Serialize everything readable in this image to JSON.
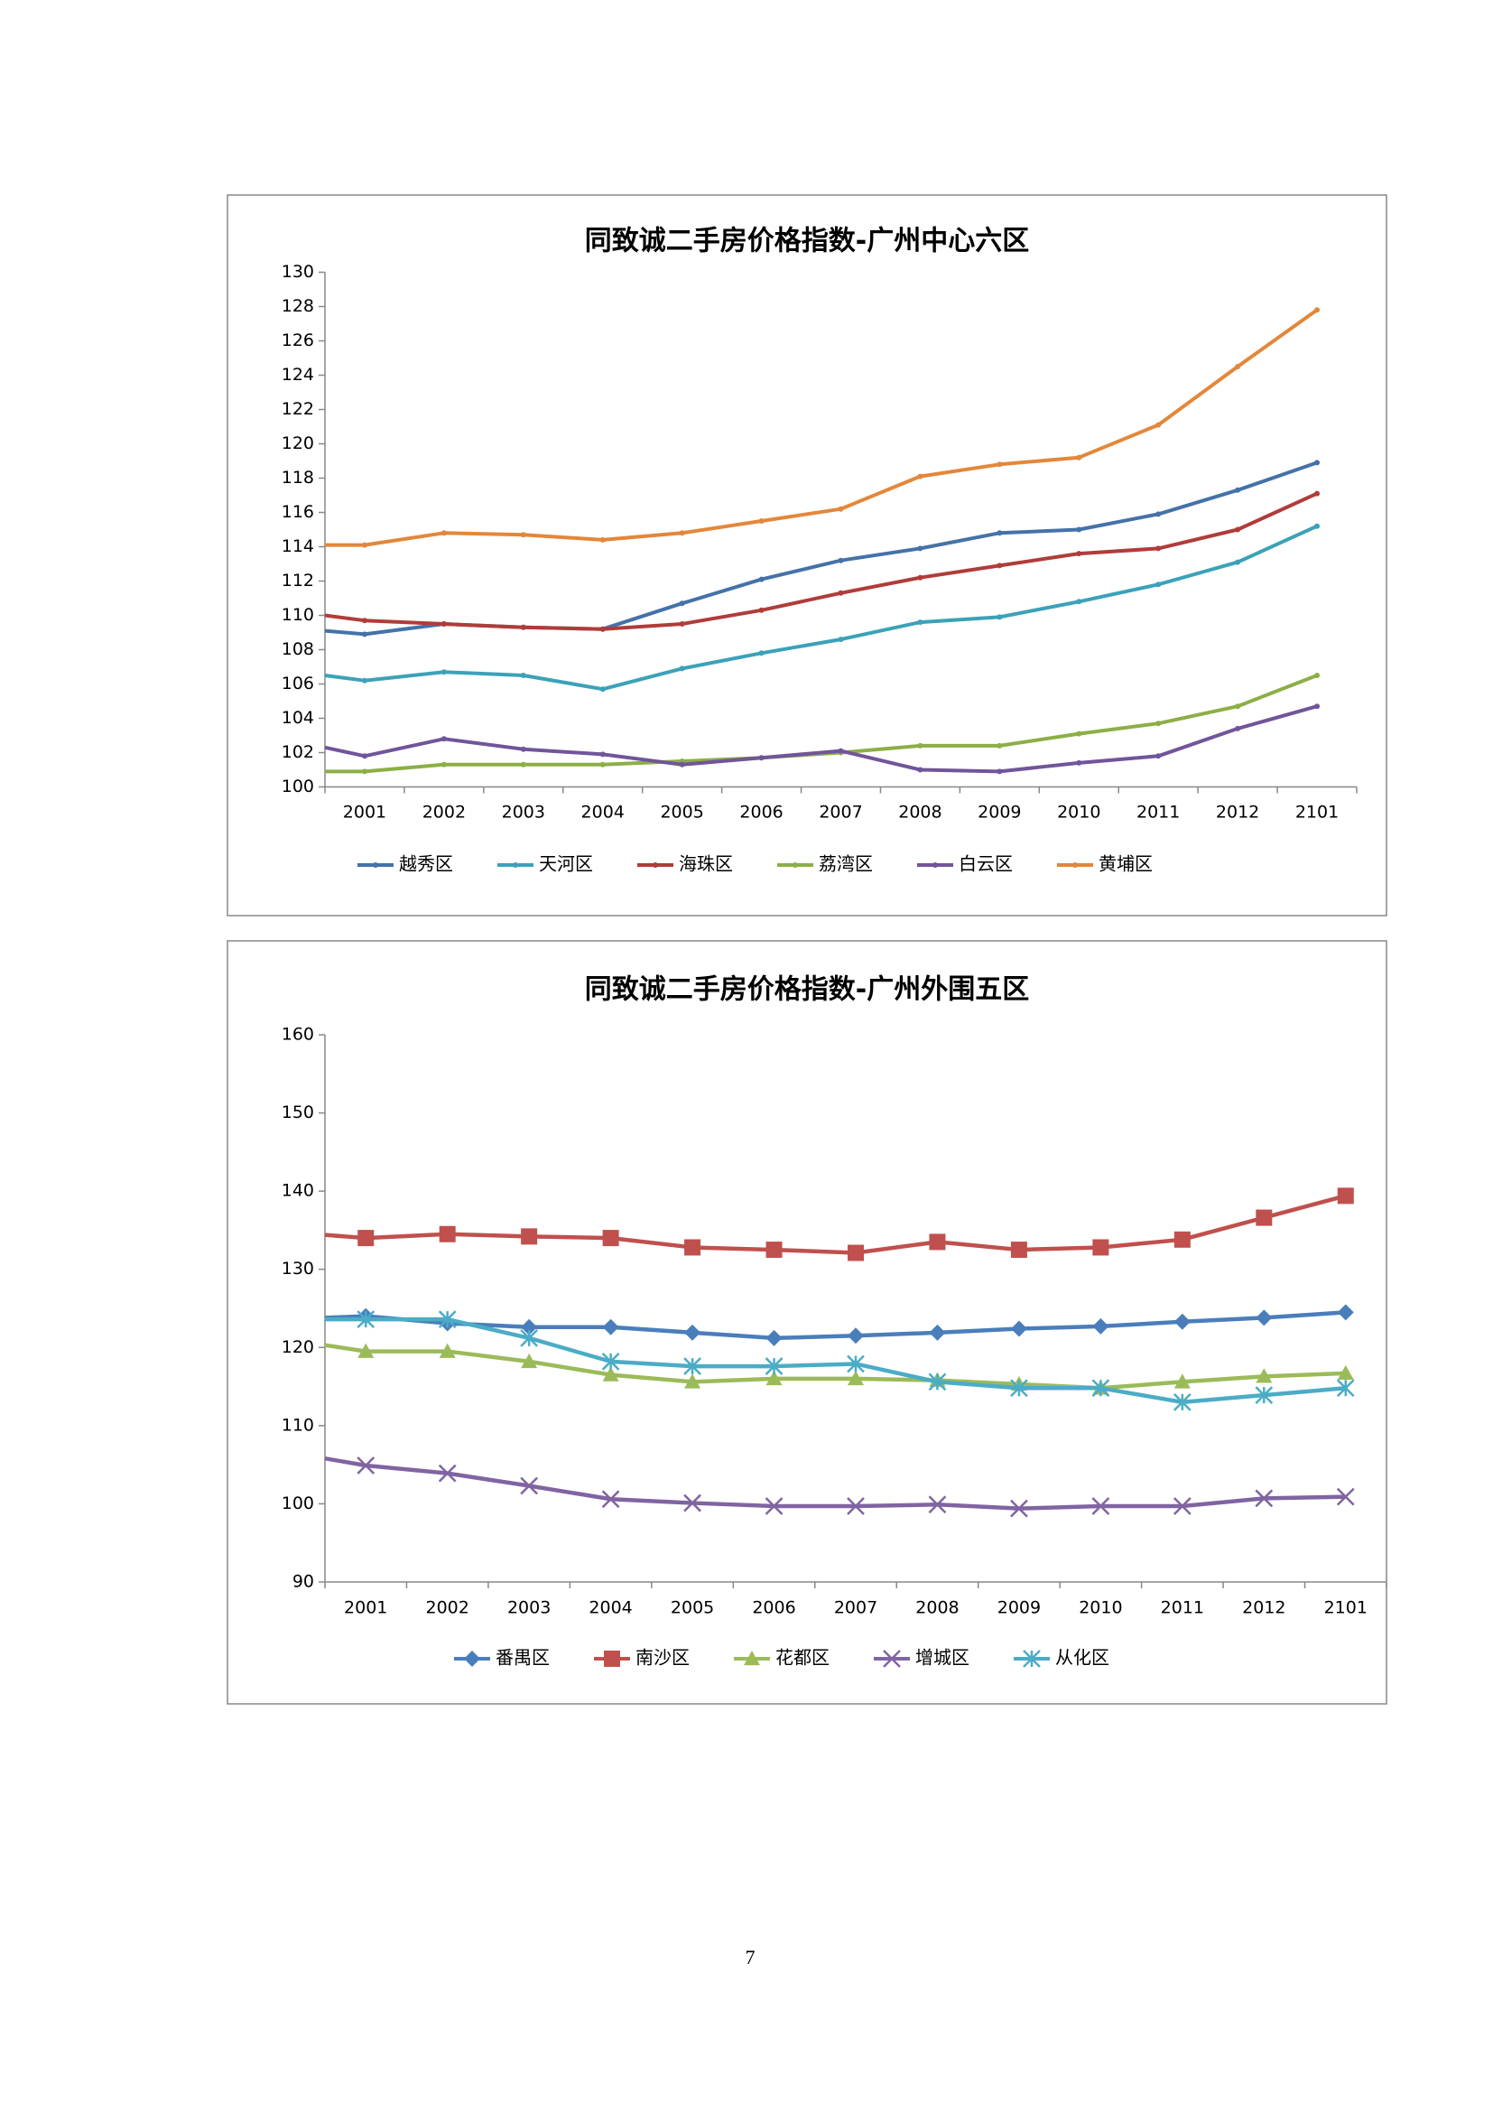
{
  "chart_data": [
    {
      "type": "line",
      "title": "同致诚二手房价格指数-广州中心六区",
      "categories": [
        null,
        "2001",
        "2002",
        "2003",
        "2004",
        "2005",
        "2006",
        "2007",
        "2008",
        "2009",
        "2010",
        "2011",
        "2012",
        "2101"
      ],
      "ylim": [
        100,
        130
      ],
      "yticks": [
        100,
        102,
        104,
        106,
        108,
        110,
        112,
        114,
        116,
        118,
        120,
        122,
        124,
        126,
        128,
        130
      ],
      "legend": "bottom",
      "marker": "dot",
      "series": [
        {
          "name": "越秀区",
          "color": "#4472a8",
          "values": [
            109.1,
            108.9,
            109.5,
            109.3,
            109.2,
            110.7,
            112.1,
            113.2,
            113.9,
            114.8,
            115.0,
            115.9,
            117.3,
            118.9
          ]
        },
        {
          "name": "天河区",
          "color": "#3ba2b8",
          "values": [
            106.5,
            106.2,
            106.7,
            106.5,
            105.7,
            106.9,
            107.8,
            108.6,
            109.6,
            109.9,
            110.8,
            111.8,
            113.1,
            115.2
          ]
        },
        {
          "name": "海珠区",
          "color": "#b03c3a",
          "values": [
            110.0,
            109.7,
            109.5,
            109.3,
            109.2,
            109.5,
            110.3,
            111.3,
            112.2,
            112.9,
            113.6,
            113.9,
            115.0,
            117.1
          ]
        },
        {
          "name": "荔湾区",
          "color": "#8caf46",
          "values": [
            100.9,
            100.9,
            101.3,
            101.3,
            101.3,
            101.5,
            101.7,
            102.0,
            102.4,
            102.4,
            103.1,
            103.7,
            104.7,
            106.5
          ]
        },
        {
          "name": "白云区",
          "color": "#71559a",
          "values": [
            102.3,
            101.8,
            102.8,
            102.2,
            101.9,
            101.3,
            101.7,
            102.1,
            101.0,
            100.9,
            101.4,
            101.8,
            103.4,
            104.7
          ]
        },
        {
          "name": "黄埔区",
          "color": "#e3873a",
          "values": [
            114.1,
            114.1,
            114.8,
            114.7,
            114.4,
            114.8,
            115.5,
            116.2,
            118.1,
            118.8,
            119.2,
            121.1,
            124.5,
            127.8
          ]
        }
      ]
    },
    {
      "type": "line",
      "title": "同致诚二手房价格指数-广州外围五区",
      "categories": [
        null,
        "2001",
        "2002",
        "2003",
        "2004",
        "2005",
        "2006",
        "2007",
        "2008",
        "2009",
        "2010",
        "2011",
        "2012",
        "2101"
      ],
      "ylim": [
        90,
        160
      ],
      "yticks": [
        90,
        100,
        110,
        120,
        130,
        140,
        150,
        160
      ],
      "legend": "bottom",
      "series": [
        {
          "name": "番禺区",
          "color": "#4a7ebb",
          "marker": "diamond",
          "values": [
            123.8,
            124.0,
            123.1,
            122.6,
            122.6,
            121.9,
            121.2,
            121.5,
            121.9,
            122.4,
            122.7,
            123.3,
            123.8,
            124.5
          ]
        },
        {
          "name": "南沙区",
          "color": "#c0504d",
          "marker": "square",
          "values": [
            134.4,
            134.0,
            134.5,
            134.2,
            134.0,
            132.8,
            132.5,
            132.1,
            133.5,
            132.5,
            132.8,
            133.8,
            136.6,
            139.4
          ]
        },
        {
          "name": "花都区",
          "color": "#9bbb59",
          "marker": "triangle",
          "values": [
            120.3,
            119.5,
            119.5,
            118.2,
            116.5,
            115.6,
            116.0,
            116.0,
            115.8,
            115.3,
            114.8,
            115.6,
            116.3,
            116.7
          ]
        },
        {
          "name": "增城区",
          "color": "#8064a2",
          "marker": "x",
          "values": [
            105.8,
            104.9,
            103.9,
            102.3,
            100.6,
            100.1,
            99.7,
            99.7,
            99.9,
            99.4,
            99.7,
            99.7,
            100.7,
            100.9
          ]
        },
        {
          "name": "从化区",
          "color": "#4bacc6",
          "marker": "star",
          "values": [
            123.6,
            123.6,
            123.6,
            121.2,
            118.2,
            117.6,
            117.6,
            117.9,
            115.6,
            114.8,
            114.8,
            113.0,
            113.9,
            114.8
          ]
        }
      ]
    }
  ],
  "page_number": "7"
}
